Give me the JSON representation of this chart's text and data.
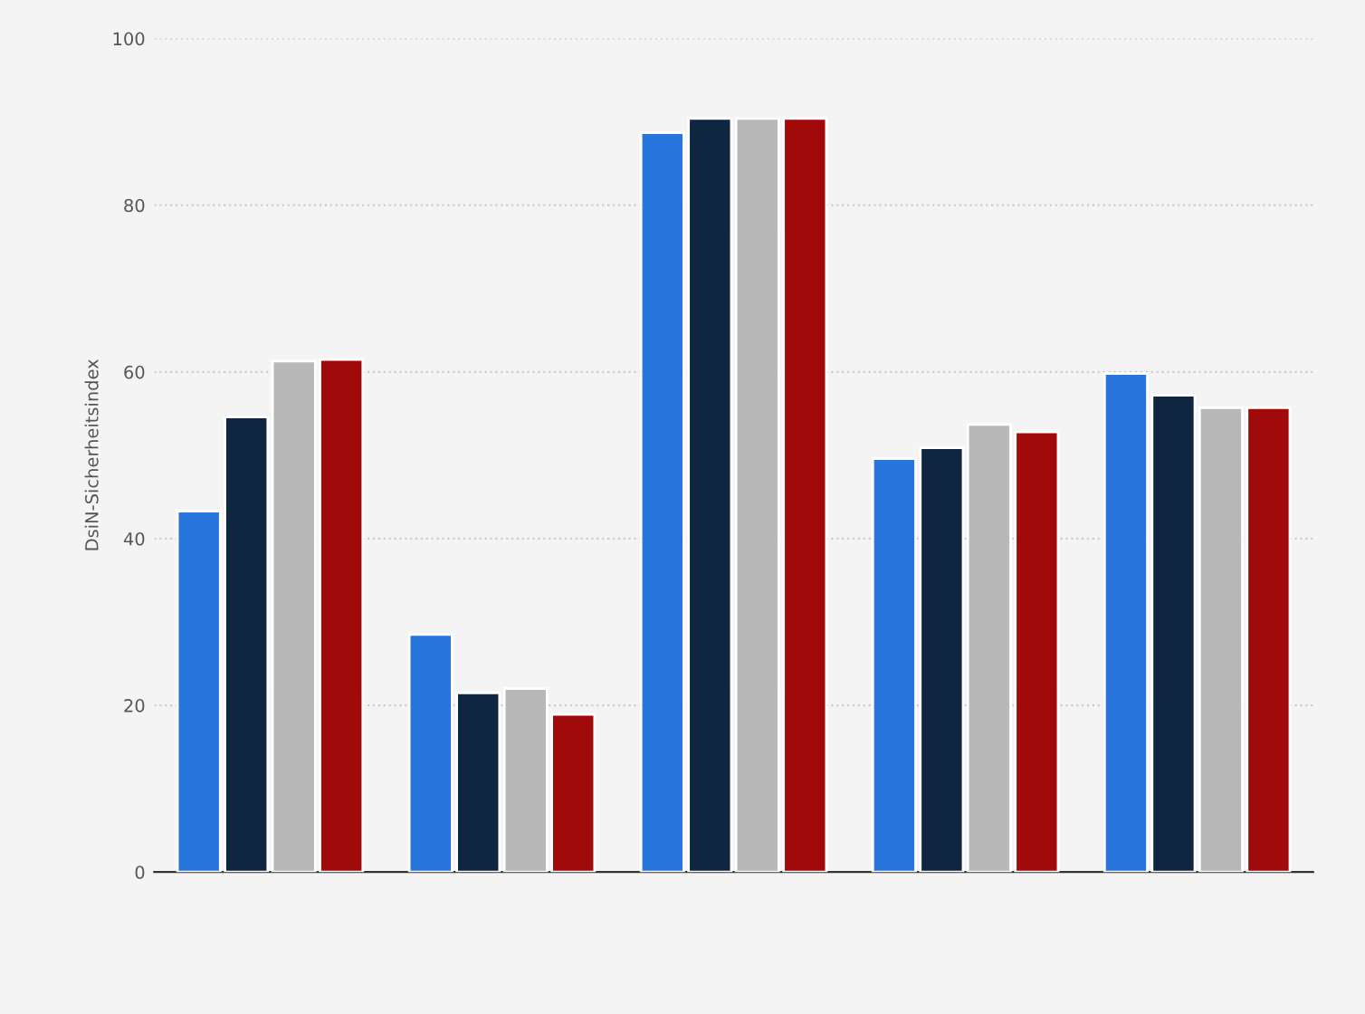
{
  "chart_data": {
    "type": "bar",
    "ylabel": "DsiN-Sicherheitsindex",
    "categories": [
      null,
      null,
      null,
      null,
      null
    ],
    "series": [
      {
        "color": "#2876dd",
        "values": [
          43.3,
          28.5,
          88.7,
          49.6,
          59.8
        ]
      },
      {
        "color": "#0f2640",
        "values": [
          54.6,
          21.5,
          90.4,
          50.9,
          57.2
        ]
      },
      {
        "color": "#b8b8b8",
        "values": [
          61.3,
          22.0,
          90.4,
          53.7,
          55.7
        ]
      },
      {
        "color": "#a10a0a",
        "values": [
          61.5,
          18.9,
          90.4,
          52.8,
          55.7
        ]
      }
    ],
    "ylim": [
      0,
      100
    ],
    "yticks": [
      0,
      20,
      40,
      60,
      80,
      100
    ],
    "grid": "y",
    "tick_labels": "y"
  }
}
